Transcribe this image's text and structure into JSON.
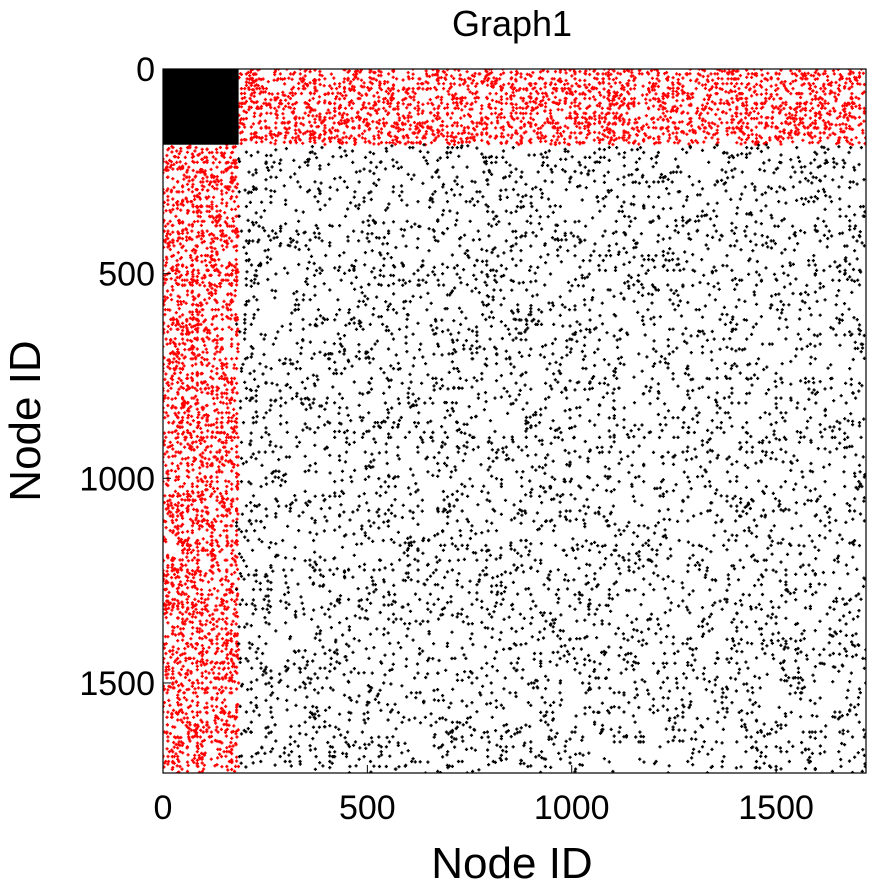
{
  "chart_data": {
    "type": "scatter",
    "title": "Graph1",
    "xlabel": "Node ID",
    "ylabel": "Node ID",
    "xlim": [
      0,
      1720
    ],
    "ylim": [
      1720,
      0
    ],
    "y_inverted": true,
    "xticks": [
      0,
      500,
      1000,
      1500
    ],
    "yticks": [
      0,
      500,
      1000,
      1500
    ],
    "grid": false,
    "legend": "none",
    "colors": {
      "dense": "#000000",
      "cross": "#ff0000",
      "sparse": "#000000"
    },
    "node_count": 1720,
    "blocks": [
      {
        "name": "dense-block",
        "x": [
          0,
          185
        ],
        "y": [
          0,
          185
        ],
        "color": "#000000",
        "density": "full"
      },
      {
        "name": "top-cross-band",
        "x": [
          185,
          1720
        ],
        "y": [
          0,
          185
        ],
        "color": "#ff0000",
        "density": "medium"
      },
      {
        "name": "left-cross-band",
        "x": [
          0,
          185
        ],
        "y": [
          185,
          1720
        ],
        "color": "#ff0000",
        "density": "medium"
      },
      {
        "name": "remaining-block",
        "x": [
          185,
          1720
        ],
        "y": [
          185,
          1720
        ],
        "color": "#000000",
        "density": "high"
      }
    ]
  }
}
